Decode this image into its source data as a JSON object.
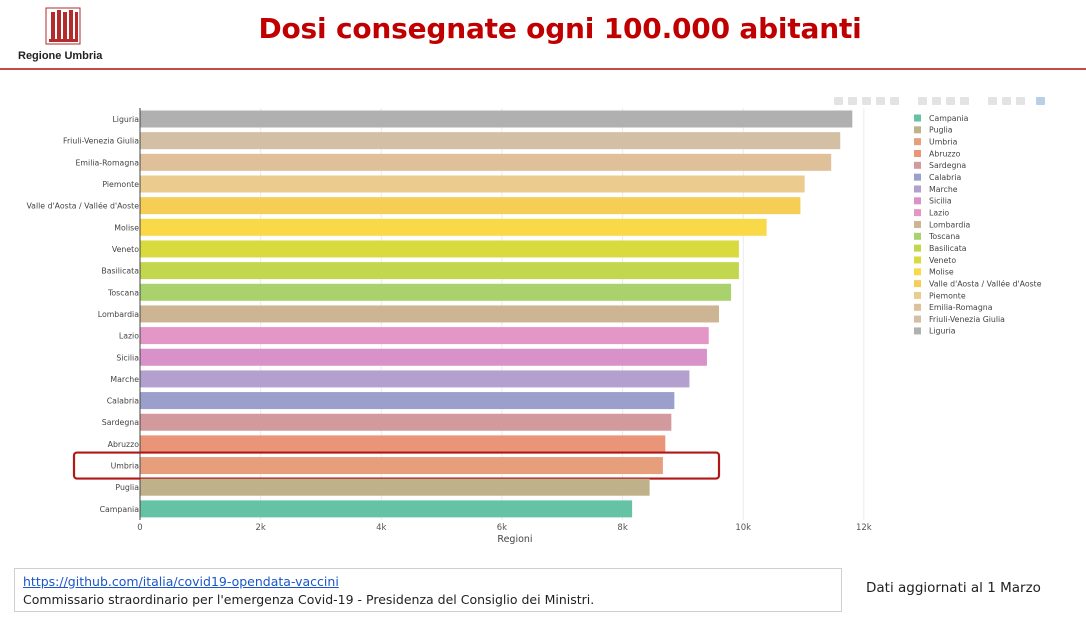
{
  "header": {
    "logo_text": "Regione Umbria",
    "title": "Dosi consegnate ogni 100.000 abitanti"
  },
  "colors": {
    "title": "#c00000",
    "header_line": "#c64a4a",
    "highlight_box": "#b01818",
    "logo": "#b32b2b"
  },
  "chart_data": {
    "type": "bar",
    "orientation": "horizontal",
    "title": "",
    "xlabel": "Regioni",
    "ylabel": "",
    "xlim": [
      0,
      12400
    ],
    "xticks": [
      0,
      2000,
      4000,
      6000,
      8000,
      10000,
      12000
    ],
    "xtick_labels": [
      "0",
      "2k",
      "4k",
      "6k",
      "8k",
      "10k",
      "12k"
    ],
    "grid": true,
    "legend": "right",
    "highlighted_category": "Umbria",
    "categories": [
      "Liguria",
      "Friuli-Venezia Giulia",
      "Emilia-Romagna",
      "Piemonte",
      "Valle d'Aosta / Vallée d'Aoste",
      "Molise",
      "Veneto",
      "Basilicata",
      "Toscana",
      "Lombardia",
      "Lazio",
      "Sicilia",
      "Marche",
      "Calabria",
      "Sardegna",
      "Abruzzo",
      "Umbria",
      "Puglia",
      "Campania"
    ],
    "values": [
      11800,
      11600,
      11450,
      11010,
      10940,
      10380,
      9920,
      9920,
      9790,
      9590,
      9420,
      9390,
      9100,
      8850,
      8800,
      8700,
      8660,
      8440,
      8150
    ],
    "bar_colors": [
      "#b0b0b0",
      "#d2bfa4",
      "#e0c099",
      "#eccb8e",
      "#f6cd55",
      "#f9d948",
      "#d9da3d",
      "#c3d74e",
      "#a9d26c",
      "#cdb493",
      "#e496c6",
      "#d891c9",
      "#b3a0cf",
      "#9a9fcb",
      "#d39a9e",
      "#ea9478",
      "#e69f7a",
      "#bfb28a",
      "#66c2a5"
    ],
    "legend_entries": [
      "Campania",
      "Puglia",
      "Umbria",
      "Abruzzo",
      "Sardegna",
      "Calabria",
      "Marche",
      "Sicilia",
      "Lazio",
      "Lombardia",
      "Toscana",
      "Basilicata",
      "Veneto",
      "Molise",
      "Valle d'Aosta / Vallée d'Aoste",
      "Piemonte",
      "Emilia-Romagna",
      "Friuli-Venezia Giulia",
      "Liguria"
    ]
  },
  "footer": {
    "source_link": "https://github.com/italia/covid19-opendata-vaccini",
    "source_text": "Commissario straordinario per l'emergenza Covid-19 - Presidenza del Consiglio dei Ministri.",
    "updated": "Dati aggiornati al 1 Marzo"
  }
}
